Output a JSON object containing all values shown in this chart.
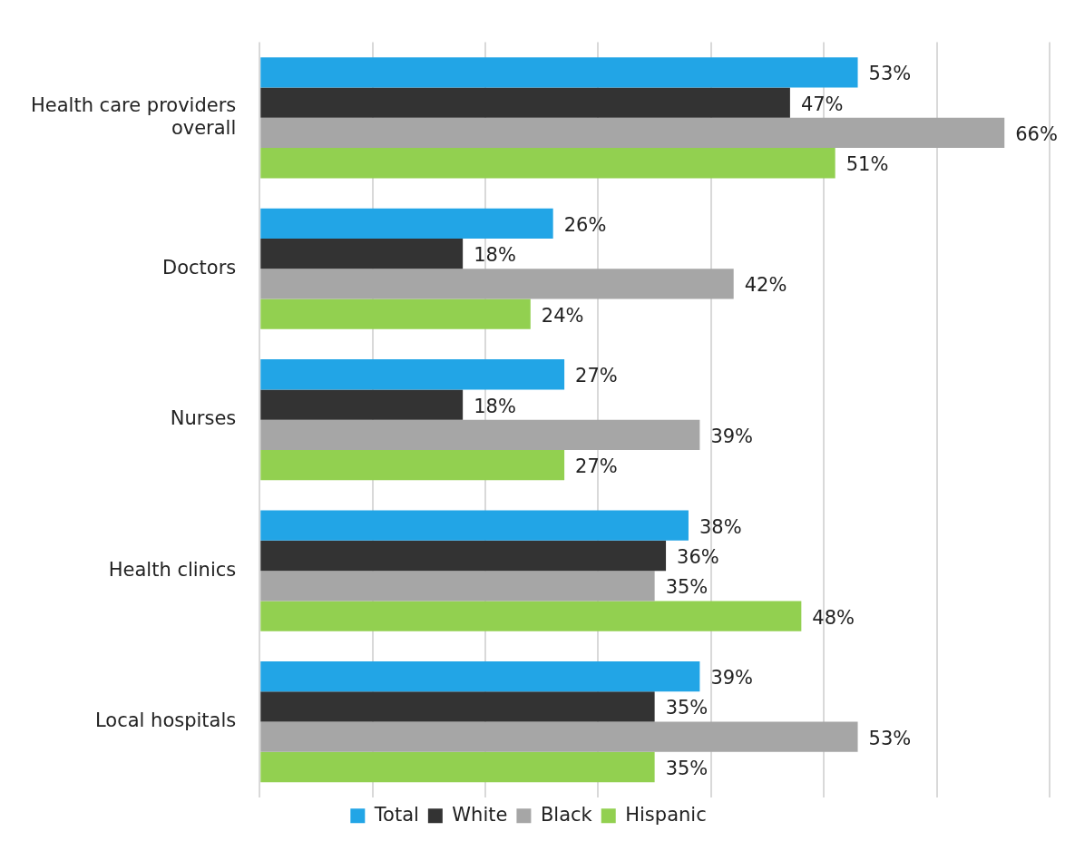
{
  "chart_data": {
    "type": "bar",
    "orientation": "horizontal",
    "categories": [
      "Health care providers overall",
      "Doctors",
      "Nurses",
      "Health clinics",
      "Local hospitals"
    ],
    "series": [
      {
        "name": "Total",
        "color": "#22a5e6",
        "values": [
          53,
          26,
          27,
          38,
          39
        ],
        "value_labels": [
          "53%",
          "26%",
          "27%",
          "38%",
          "39%"
        ]
      },
      {
        "name": "White",
        "color": "#333333",
        "values": [
          47,
          18,
          18,
          36,
          35
        ],
        "value_labels": [
          "47%",
          "18%",
          "18%",
          "36%",
          "35%"
        ]
      },
      {
        "name": "Black",
        "color": "#a6a6a6",
        "values": [
          66,
          42,
          39,
          35,
          53
        ],
        "value_labels": [
          "66%",
          "42%",
          "39%",
          "35%",
          "53%"
        ]
      },
      {
        "name": "Hispanic",
        "color": "#92d050",
        "values": [
          51,
          24,
          27,
          48,
          35
        ],
        "value_labels": [
          "51%",
          "24%",
          "27%",
          "48%",
          "35%"
        ]
      }
    ],
    "xlim": [
      0,
      70
    ],
    "xticks": [
      {
        "value": 0,
        "label": null
      },
      {
        "value": 10,
        "label": null
      },
      {
        "value": 20,
        "label": null
      },
      {
        "value": 30,
        "label": null
      },
      {
        "value": 40,
        "label": null
      },
      {
        "value": 50,
        "label": null
      },
      {
        "value": 60,
        "label": null
      },
      {
        "value": 70,
        "label": null
      }
    ],
    "grid": "x",
    "legend": "bottom",
    "tick_labels": "y"
  }
}
